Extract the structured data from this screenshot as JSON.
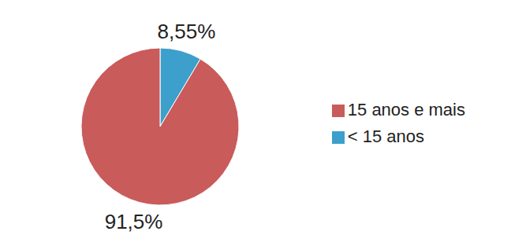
{
  "chart_data": {
    "type": "pie",
    "categories": [
      "< 15 anos",
      "15 anos e mais"
    ],
    "values": [
      8.55,
      91.5
    ],
    "value_labels": [
      "8,55%",
      "91,5%"
    ],
    "colors": [
      "#3d9fcb",
      "#c95b5b"
    ],
    "data_labels": true,
    "legend": "right"
  }
}
